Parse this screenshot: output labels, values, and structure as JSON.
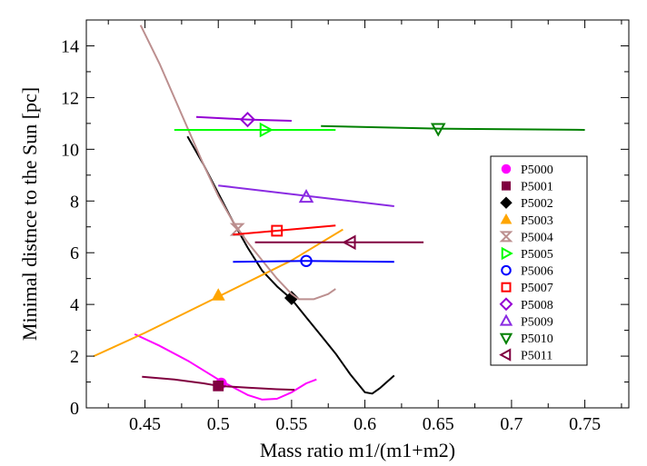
{
  "chart_data": {
    "type": "line",
    "title": "",
    "xlabel": "Mass ratio m1/(m1+m2)",
    "ylabel": "Minimal distnce to the Sun [pc]",
    "xlim": [
      0.41,
      0.78
    ],
    "ylim": [
      0,
      15
    ],
    "xticks": [
      0.45,
      0.5,
      0.55,
      0.6,
      0.65,
      0.7,
      0.75
    ],
    "xtick_labels": [
      "0.45",
      "0.5",
      "0.55",
      "0.6",
      "0.65",
      "0.7",
      "0.75"
    ],
    "yticks": [
      0,
      2,
      4,
      6,
      8,
      10,
      12,
      14
    ],
    "ytick_labels": [
      "0",
      "2",
      "4",
      "6",
      "8",
      "10",
      "12",
      "14"
    ],
    "grid": false,
    "legend_position": "right",
    "series": [
      {
        "name": "P5000",
        "color": "#ff00ff",
        "marker": "circle-filled",
        "curve": [
          [
            0.443,
            2.85
          ],
          [
            0.46,
            2.4
          ],
          [
            0.48,
            1.8
          ],
          [
            0.5,
            1.1
          ],
          [
            0.51,
            0.8
          ],
          [
            0.52,
            0.5
          ],
          [
            0.53,
            0.32
          ],
          [
            0.54,
            0.35
          ],
          [
            0.55,
            0.6
          ],
          [
            0.56,
            0.95
          ],
          [
            0.567,
            1.1
          ]
        ],
        "point": [
          0.502,
          0.95
        ]
      },
      {
        "name": "P5001",
        "color": "#800040",
        "marker": "square-filled",
        "curve": [
          [
            0.448,
            1.2
          ],
          [
            0.47,
            1.1
          ],
          [
            0.49,
            0.95
          ],
          [
            0.5,
            0.85
          ],
          [
            0.52,
            0.78
          ],
          [
            0.54,
            0.72
          ],
          [
            0.552,
            0.7
          ]
        ],
        "point": [
          0.5,
          0.85
        ]
      },
      {
        "name": "P5002",
        "color": "#000000",
        "marker": "diamond-filled",
        "curve": [
          [
            0.479,
            10.5
          ],
          [
            0.49,
            9.4
          ],
          [
            0.5,
            8.3
          ],
          [
            0.51,
            7.2
          ],
          [
            0.52,
            6.2
          ],
          [
            0.53,
            5.3
          ],
          [
            0.54,
            4.7
          ],
          [
            0.55,
            4.2
          ],
          [
            0.56,
            3.5
          ],
          [
            0.57,
            2.8
          ],
          [
            0.58,
            2.1
          ],
          [
            0.59,
            1.3
          ],
          [
            0.6,
            0.6
          ],
          [
            0.605,
            0.55
          ],
          [
            0.61,
            0.75
          ],
          [
            0.62,
            1.25
          ]
        ],
        "point": [
          0.55,
          4.25
        ]
      },
      {
        "name": "P5003",
        "color": "#ffa500",
        "marker": "triangle-up-filled",
        "curve": [
          [
            0.415,
            2.0
          ],
          [
            0.45,
            2.9
          ],
          [
            0.5,
            4.3
          ],
          [
            0.55,
            5.7
          ],
          [
            0.585,
            6.9
          ]
        ],
        "point": [
          0.5,
          4.35
        ]
      },
      {
        "name": "P5004",
        "color": "#bc8f8f",
        "marker": "hourglass",
        "curve": [
          [
            0.447,
            14.8
          ],
          [
            0.46,
            13.3
          ],
          [
            0.47,
            12.0
          ],
          [
            0.48,
            10.7
          ],
          [
            0.49,
            9.4
          ],
          [
            0.5,
            8.2
          ],
          [
            0.51,
            7.2
          ],
          [
            0.52,
            6.4
          ],
          [
            0.53,
            5.7
          ],
          [
            0.54,
            5.0
          ],
          [
            0.55,
            4.4
          ],
          [
            0.555,
            4.2
          ],
          [
            0.565,
            4.2
          ],
          [
            0.575,
            4.4
          ],
          [
            0.58,
            4.6
          ]
        ],
        "point": [
          0.513,
          6.9
        ]
      },
      {
        "name": "P5005",
        "color": "#00ff00",
        "marker": "triangle-right",
        "curve": [
          [
            0.47,
            10.75
          ],
          [
            0.53,
            10.75
          ],
          [
            0.58,
            10.75
          ]
        ],
        "point": [
          0.532,
          10.75
        ]
      },
      {
        "name": "P5006",
        "color": "#0000ff",
        "marker": "circle",
        "curve": [
          [
            0.51,
            5.65
          ],
          [
            0.56,
            5.68
          ],
          [
            0.62,
            5.65
          ]
        ],
        "point": [
          0.56,
          5.68
        ]
      },
      {
        "name": "P5007",
        "color": "#ff0000",
        "marker": "square",
        "curve": [
          [
            0.51,
            6.7
          ],
          [
            0.54,
            6.85
          ],
          [
            0.58,
            7.05
          ]
        ],
        "point": [
          0.54,
          6.85
        ]
      },
      {
        "name": "P5008",
        "color": "#9400d3",
        "marker": "diamond",
        "curve": [
          [
            0.485,
            11.25
          ],
          [
            0.52,
            11.15
          ],
          [
            0.55,
            11.1
          ]
        ],
        "point": [
          0.52,
          11.15
        ]
      },
      {
        "name": "P5009",
        "color": "#8a2be2",
        "marker": "triangle-up",
        "curve": [
          [
            0.5,
            8.6
          ],
          [
            0.56,
            8.2
          ],
          [
            0.62,
            7.8
          ]
        ],
        "point": [
          0.56,
          8.15
        ]
      },
      {
        "name": "P5010",
        "color": "#008000",
        "marker": "triangle-down",
        "curve": [
          [
            0.57,
            10.9
          ],
          [
            0.65,
            10.8
          ],
          [
            0.75,
            10.75
          ]
        ],
        "point": [
          0.65,
          10.8
        ]
      },
      {
        "name": "P5011",
        "color": "#800040",
        "marker": "triangle-left",
        "curve": [
          [
            0.525,
            6.4
          ],
          [
            0.59,
            6.4
          ],
          [
            0.64,
            6.4
          ]
        ],
        "point": [
          0.59,
          6.4
        ]
      }
    ]
  }
}
